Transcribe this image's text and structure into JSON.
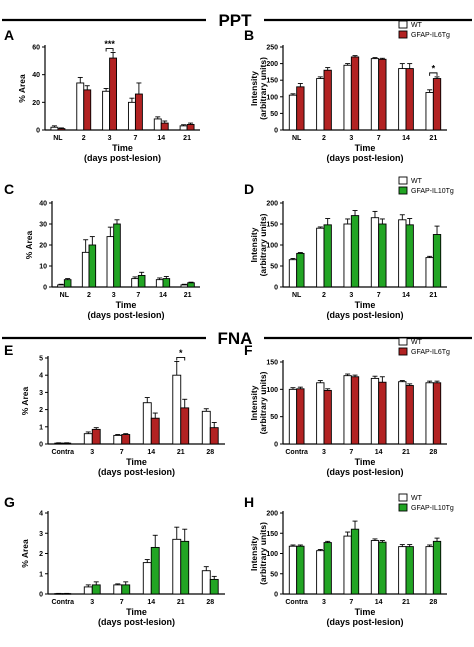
{
  "sections": [
    {
      "title": "PPT"
    },
    {
      "title": "FNA"
    }
  ],
  "colors": {
    "wt": "#ffffff",
    "il6": "#b22222",
    "il10": "#22a524",
    "axis": "#000000"
  },
  "chart_data": [
    {
      "panel": "A",
      "type": "bar",
      "categories": [
        "NL",
        "2",
        "3",
        "7",
        "14",
        "21"
      ],
      "ylabel": "% Area",
      "xlabel": "Time",
      "xlabel2": "(days post-lesion)",
      "ylim": [
        0,
        60
      ],
      "yticks": [
        "0",
        "20",
        "40",
        "60"
      ],
      "series": [
        {
          "values": [
            2,
            34,
            28,
            20,
            8,
            3
          ],
          "errors": [
            1,
            4,
            2,
            3,
            1.5,
            0.8
          ],
          "color": "#ffffff"
        },
        {
          "values": [
            1,
            29,
            52,
            26,
            5,
            4
          ],
          "errors": [
            0.5,
            3,
            4,
            8,
            1.5,
            1
          ],
          "color": "#b22222"
        }
      ],
      "annotations": [
        {
          "label": "***",
          "category": "3"
        }
      ]
    },
    {
      "panel": "B",
      "type": "bar",
      "categories": [
        "NL",
        "2",
        "3",
        "7",
        "14",
        "21"
      ],
      "ylabel": "Intensity",
      "ylabel2": "(arbitrary units)",
      "xlabel": "Time",
      "xlabel2": "(days post-lesion)",
      "ylim": [
        0,
        250
      ],
      "yticks": [
        "0",
        "50",
        "100",
        "150",
        "200",
        "250"
      ],
      "legend": [
        "WT",
        "GFAP-IL6Tg"
      ],
      "series": [
        {
          "name": "WT",
          "values": [
            105,
            155,
            195,
            215,
            185,
            113
          ],
          "errors": [
            4,
            5,
            5,
            3,
            15,
            8
          ],
          "color": "#ffffff"
        },
        {
          "name": "GFAP-IL6Tg",
          "values": [
            130,
            180,
            220,
            213,
            185,
            155
          ],
          "errors": [
            10,
            8,
            4,
            3,
            15,
            5
          ],
          "color": "#b22222"
        }
      ],
      "annotations": [
        {
          "label": "*",
          "category": "21"
        }
      ]
    },
    {
      "panel": "C",
      "type": "bar",
      "categories": [
        "NL",
        "2",
        "3",
        "7",
        "14",
        "21"
      ],
      "ylabel": "% Area",
      "xlabel": "Time",
      "xlabel2": "(days post-lesion)",
      "ylim": [
        0,
        40
      ],
      "yticks": [
        "0",
        "10",
        "20",
        "30",
        "40"
      ],
      "series": [
        {
          "values": [
            1,
            16.5,
            24,
            4,
            3.5,
            1
          ],
          "errors": [
            0.3,
            6,
            4.5,
            0.8,
            0.8,
            0.3
          ],
          "color": "#ffffff"
        },
        {
          "values": [
            3.5,
            20,
            30,
            5.5,
            4,
            2
          ],
          "errors": [
            0.5,
            4,
            2,
            1.5,
            1,
            0.3
          ],
          "color": "#22a524"
        }
      ]
    },
    {
      "panel": "D",
      "type": "bar",
      "categories": [
        "NL",
        "2",
        "3",
        "7",
        "14",
        "21"
      ],
      "ylabel": "Intensity",
      "ylabel2": "(arbitrary units)",
      "xlabel": "Time",
      "xlabel2": "(days post-lesion)",
      "ylim": [
        0,
        200
      ],
      "yticks": [
        "0",
        "50",
        "100",
        "150",
        "200"
      ],
      "legend": [
        "WT",
        "GFAP-IL10Tg"
      ],
      "series": [
        {
          "name": "WT",
          "values": [
            65,
            140,
            150,
            165,
            160,
            70
          ],
          "errors": [
            3,
            3,
            12,
            15,
            12,
            3
          ],
          "color": "#ffffff"
        },
        {
          "name": "GFAP-IL10Tg",
          "values": [
            80,
            148,
            170,
            150,
            148,
            125
          ],
          "errors": [
            2,
            15,
            12,
            12,
            15,
            20
          ],
          "color": "#22a524"
        }
      ]
    },
    {
      "panel": "E",
      "type": "bar",
      "categories": [
        "Contra",
        "3",
        "7",
        "14",
        "21",
        "28"
      ],
      "ylabel": "% Area",
      "xlabel": "Time",
      "xlabel2": "(days post-lesion)",
      "ylim": [
        0,
        5
      ],
      "yticks": [
        "0",
        "1",
        "2",
        "3",
        "4",
        "5"
      ],
      "series": [
        {
          "values": [
            0.05,
            0.6,
            0.5,
            2.4,
            4.0,
            1.9
          ],
          "errors": [
            0.02,
            0.1,
            0.05,
            0.3,
            0.8,
            0.15
          ],
          "color": "#ffffff"
        },
        {
          "values": [
            0.05,
            0.85,
            0.55,
            1.5,
            2.1,
            0.95
          ],
          "errors": [
            0.02,
            0.1,
            0.05,
            0.3,
            0.5,
            0.3
          ],
          "color": "#b22222"
        }
      ],
      "annotations": [
        {
          "label": "*",
          "category": "21"
        }
      ]
    },
    {
      "panel": "F",
      "type": "bar",
      "categories": [
        "Contra",
        "3",
        "7",
        "14",
        "21",
        "28"
      ],
      "ylabel": "Intensity",
      "ylabel2": "(arbitrary units)",
      "xlabel": "Time",
      "xlabel2": "(days post-lesion)",
      "ylim": [
        0,
        150
      ],
      "yticks": [
        "0",
        "50",
        "100",
        "150"
      ],
      "legend": [
        "WT",
        "GFAP-IL6Tg"
      ],
      "series": [
        {
          "name": "WT",
          "values": [
            100,
            112,
            125,
            120,
            114,
            112
          ],
          "errors": [
            3,
            4,
            3,
            4,
            2,
            3
          ],
          "color": "#ffffff"
        },
        {
          "name": "GFAP-IL6Tg",
          "values": [
            101,
            98,
            123,
            113,
            107,
            112
          ],
          "errors": [
            3,
            3,
            3,
            10,
            3,
            3
          ],
          "color": "#b22222"
        }
      ]
    },
    {
      "panel": "G",
      "type": "bar",
      "categories": [
        "Contra",
        "3",
        "7",
        "14",
        "21",
        "28"
      ],
      "ylabel": "% Area",
      "xlabel": "Time",
      "xlabel2": "(days post-lesion)",
      "ylim": [
        0,
        4
      ],
      "yticks": [
        "0",
        "1",
        "2",
        "3",
        "4"
      ],
      "series": [
        {
          "values": [
            0.02,
            0.35,
            0.45,
            1.55,
            2.7,
            1.15
          ],
          "errors": [
            0.01,
            0.1,
            0.05,
            0.15,
            0.6,
            0.2
          ],
          "color": "#ffffff"
        },
        {
          "values": [
            0.02,
            0.45,
            0.45,
            2.3,
            2.6,
            0.72
          ],
          "errors": [
            0.01,
            0.15,
            0.15,
            0.6,
            0.6,
            0.15
          ],
          "color": "#22a524"
        }
      ]
    },
    {
      "panel": "H",
      "type": "bar",
      "categories": [
        "Contra",
        "3",
        "7",
        "14",
        "21",
        "28"
      ],
      "ylabel": "Intensity",
      "ylabel2": "(arbitrary units)",
      "xlabel": "Time",
      "xlabel2": "(days post-lesion)",
      "ylim": [
        0,
        200
      ],
      "yticks": [
        "0",
        "50",
        "100",
        "150",
        "200"
      ],
      "legend": [
        "WT",
        "GFAP-IL10Tg"
      ],
      "series": [
        {
          "name": "WT",
          "values": [
            118,
            107,
            143,
            132,
            117,
            117
          ],
          "errors": [
            3,
            3,
            10,
            4,
            5,
            4
          ],
          "color": "#ffffff"
        },
        {
          "name": "GFAP-IL10Tg",
          "values": [
            118,
            127,
            160,
            128,
            117,
            130
          ],
          "errors": [
            3,
            3,
            20,
            4,
            5,
            8
          ],
          "color": "#22a524"
        }
      ]
    }
  ]
}
